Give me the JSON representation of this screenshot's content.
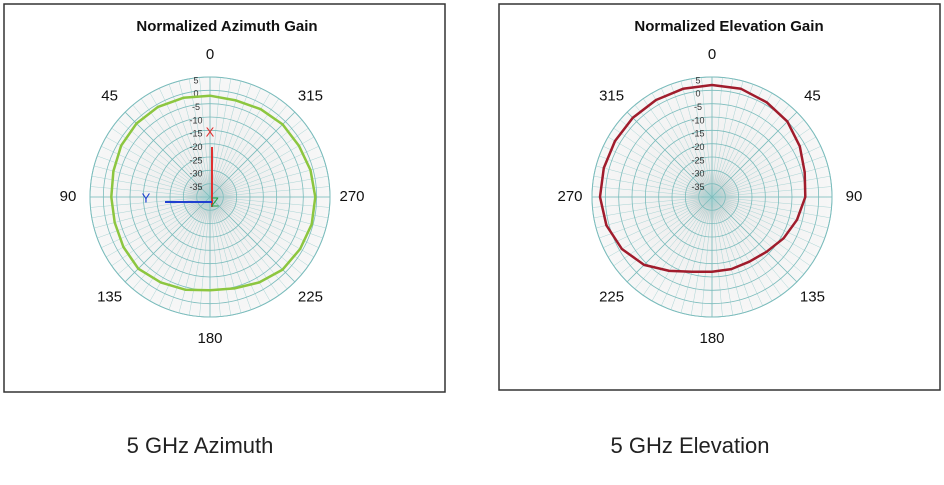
{
  "chart_data": [
    {
      "type": "polar",
      "title": "Normalized Azimuth Gain",
      "caption": "5 GHz Azimuth",
      "direction": "counterclockwise",
      "thetaticks": [
        0,
        45,
        90,
        135,
        180,
        225,
        270,
        315
      ],
      "rlim": [
        -40,
        5
      ],
      "rticks": [
        5,
        0,
        -5,
        -10,
        -15,
        -20,
        -25,
        -30,
        -35
      ],
      "grid": true,
      "annotations": [
        {
          "text": "X",
          "color": "#e03030"
        },
        {
          "text": "Y",
          "color": "#2040d0"
        },
        {
          "text": "Z",
          "color": "#20a040"
        }
      ],
      "series": [
        {
          "color": "#8cc63f",
          "theta": [
            0,
            15,
            30,
            45,
            60,
            75,
            90,
            105,
            120,
            135,
            150,
            165,
            180,
            195,
            210,
            225,
            240,
            255,
            270,
            285,
            300,
            315,
            330,
            345
          ],
          "values": [
            -2,
            -1.5,
            -1,
            -1,
            -1.5,
            -2.5,
            -3,
            -3,
            -2.5,
            -2,
            -3,
            -4,
            -5,
            -4.5,
            -3,
            -1.5,
            -1,
            -0.5,
            -0.5,
            -1,
            -1.5,
            -1.5,
            -2,
            -2.5
          ]
        }
      ]
    },
    {
      "type": "polar",
      "title": "Normalized Elevation Gain",
      "caption": "5 GHz Elevation",
      "direction": "clockwise",
      "thetaticks": [
        0,
        45,
        90,
        135,
        180,
        225,
        270,
        315
      ],
      "rlim": [
        -40,
        5
      ],
      "rticks": [
        5,
        0,
        -5,
        -10,
        -15,
        -20,
        -25,
        -30,
        -35
      ],
      "grid": true,
      "series": [
        {
          "color": "#a01c2c",
          "theta": [
            0,
            15,
            30,
            45,
            60,
            75,
            90,
            105,
            120,
            135,
            150,
            165,
            180,
            195,
            210,
            225,
            240,
            255,
            270,
            285,
            300,
            315,
            330,
            345
          ],
          "values": [
            2,
            2,
            1,
            0,
            -2,
            -4,
            -5,
            -7,
            -9,
            -11,
            -12,
            -12,
            -12,
            -11,
            -8,
            -4,
            -1,
            1,
            2,
            2,
            2,
            2,
            2,
            2
          ]
        }
      ]
    }
  ]
}
